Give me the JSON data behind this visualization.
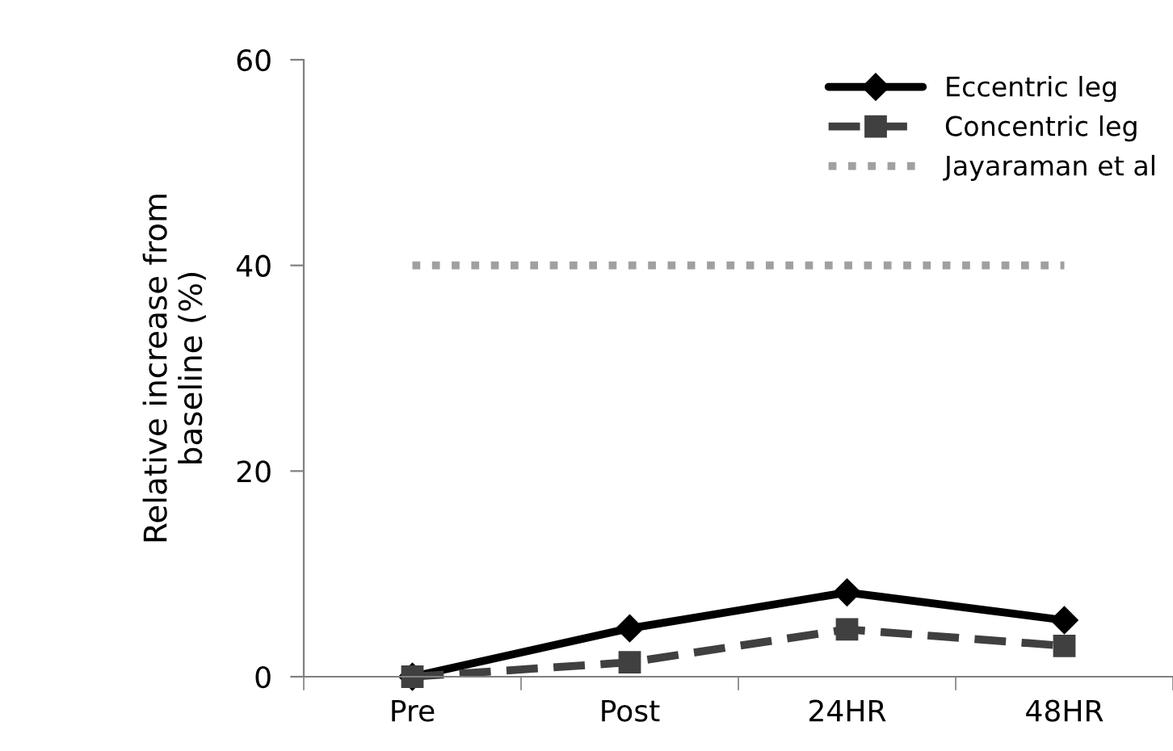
{
  "chart_data": {
    "type": "line",
    "ylabel": "Relative increase from\nbaseline (%)",
    "categories": [
      "Pre",
      "Post",
      "24HR",
      "48HR"
    ],
    "series": [
      {
        "name": "Eccentric leg",
        "color": "#000000",
        "values": [
          0,
          4.7,
          8.2,
          5.5
        ],
        "marker": "diamond",
        "line_style": "solid"
      },
      {
        "name": "Concentric leg",
        "color": "#404040",
        "values": [
          0,
          1.4,
          4.6,
          3.0
        ],
        "marker": "square",
        "line_style": "dashed"
      },
      {
        "name": "Jayaraman et al",
        "color": "#a0a0a0",
        "values": [
          40,
          40,
          40,
          40
        ],
        "marker": "none",
        "line_style": "dotted"
      }
    ],
    "ylim": [
      0,
      60
    ],
    "yticks": [
      0,
      20,
      40,
      60
    ],
    "grid": false,
    "legend": "top right"
  }
}
